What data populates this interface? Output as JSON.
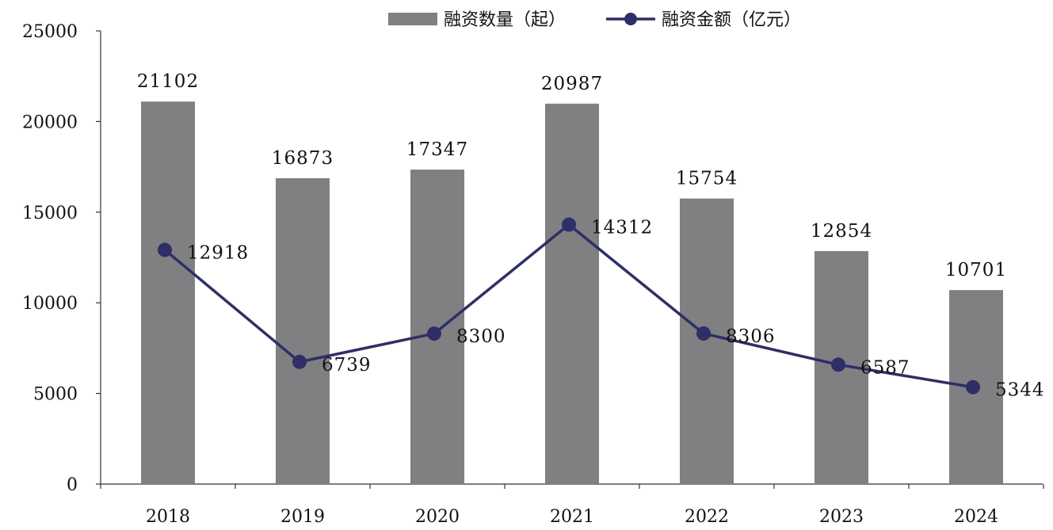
{
  "chart_data": {
    "type": "bar",
    "categories": [
      "2018",
      "2019",
      "2020",
      "2021",
      "2022",
      "2023",
      "2024"
    ],
    "series": [
      {
        "name": "融资数量（起）",
        "type": "bar",
        "values": [
          21102,
          16873,
          17347,
          20987,
          15754,
          12854,
          10701
        ],
        "labels": [
          "21102",
          "16873",
          "17347",
          "20987",
          "15754",
          "12854",
          "10701"
        ],
        "color": "#808083"
      },
      {
        "name": "融资金额（亿元）",
        "type": "line",
        "values": [
          12918,
          6739,
          8300,
          14312,
          8306,
          6587,
          5344
        ],
        "labels": [
          "12918",
          "6739",
          "8300",
          "14312",
          "8306",
          "6587",
          "5344"
        ],
        "color": "#2e2f66"
      }
    ],
    "yticks": [
      "0",
      "5000",
      "10000",
      "15000",
      "20000",
      "25000"
    ],
    "ylim": [
      0,
      25000
    ],
    "title": "",
    "xlabel": "",
    "ylabel": "",
    "grid": false,
    "legend_position": "top"
  }
}
